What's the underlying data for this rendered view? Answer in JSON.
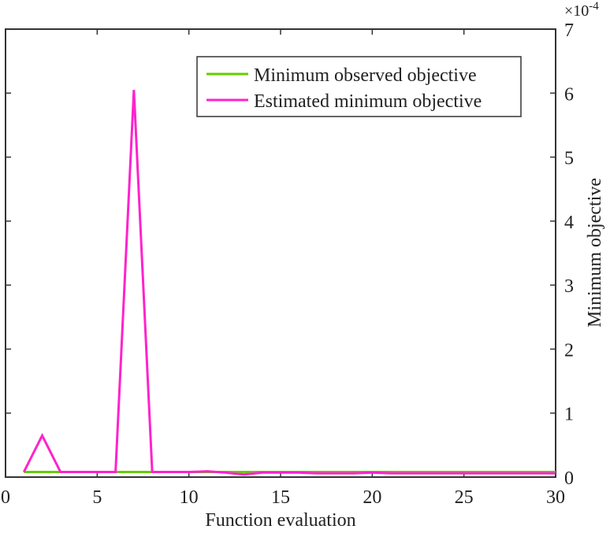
{
  "chart_data": {
    "type": "line",
    "title": "",
    "xlabel": "Function evaluation",
    "ylabel": "Minimum objective",
    "y_exponent": "×10",
    "y_exponent_power": "-4",
    "xlim": [
      0,
      30
    ],
    "ylim": [
      0,
      7
    ],
    "xticks": [
      "0",
      "5",
      "10",
      "15",
      "20",
      "25",
      "30"
    ],
    "yticks": [
      "0",
      "1",
      "2",
      "3",
      "4",
      "5",
      "6",
      "7"
    ],
    "grid": false,
    "legend_position": "top-right",
    "x": [
      1,
      2,
      3,
      4,
      5,
      6,
      7,
      8,
      9,
      10,
      11,
      12,
      13,
      14,
      15,
      16,
      17,
      18,
      19,
      20,
      21,
      22,
      23,
      24,
      25,
      26,
      27,
      28,
      29,
      30
    ],
    "series": [
      {
        "name": "Minimum observed objective",
        "color": "#66cc00",
        "values": [
          0.08,
          0.08,
          0.08,
          0.08,
          0.08,
          0.08,
          0.08,
          0.08,
          0.08,
          0.08,
          0.08,
          0.08,
          0.08,
          0.08,
          0.08,
          0.08,
          0.08,
          0.08,
          0.08,
          0.08,
          0.08,
          0.08,
          0.08,
          0.08,
          0.08,
          0.08,
          0.08,
          0.08,
          0.08,
          0.08
        ]
      },
      {
        "name": "Estimated minimum objective",
        "color": "#ff22cc",
        "values": [
          0.08,
          0.65,
          0.08,
          0.08,
          0.08,
          0.08,
          6.05,
          0.08,
          0.08,
          0.08,
          0.09,
          0.07,
          0.04,
          0.07,
          0.07,
          0.07,
          0.06,
          0.06,
          0.06,
          0.07,
          0.06,
          0.06,
          0.06,
          0.06,
          0.06,
          0.06,
          0.06,
          0.06,
          0.06,
          0.06
        ]
      }
    ]
  }
}
